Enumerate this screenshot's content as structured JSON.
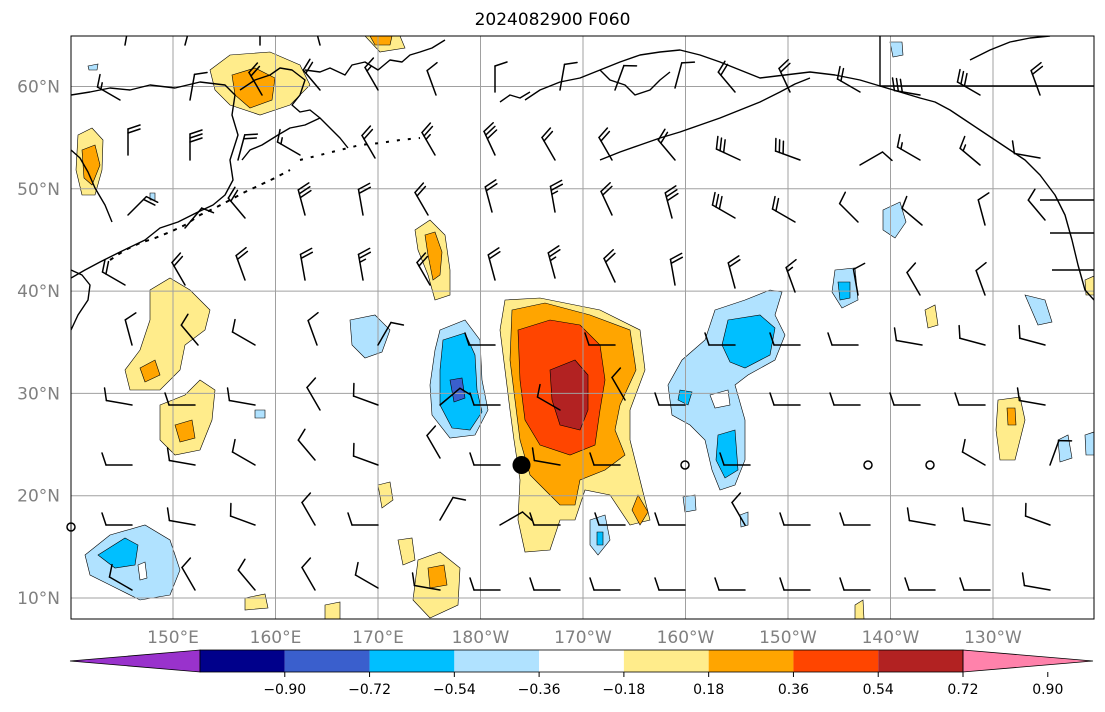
{
  "title": "2024082900 F060",
  "lat_labels": [
    "60°N",
    "50°N",
    "40°N",
    "30°N",
    "20°N",
    "10°N"
  ],
  "lon_labels": [
    "150°E",
    "160°E",
    "170°E",
    "180°W",
    "170°W",
    "160°W",
    "150°W",
    "140°W",
    "130°W"
  ],
  "colorbar": {
    "colors": [
      "#9932cc",
      "#00008b",
      "#3a5fcd",
      "#00bfff",
      "#b0e2ff",
      "#ffffff",
      "#ffec8b",
      "#ffa500",
      "#ff4500",
      "#b22222",
      "#ff82ab"
    ],
    "tick_labels": [
      "−0.90",
      "−0.72",
      "−0.54",
      "−0.36",
      "−0.18",
      "0.18",
      "0.36",
      "0.54",
      "0.72",
      "0.90"
    ]
  },
  "marker": {
    "label": "",
    "lat": 23,
    "lon": -176
  }
}
